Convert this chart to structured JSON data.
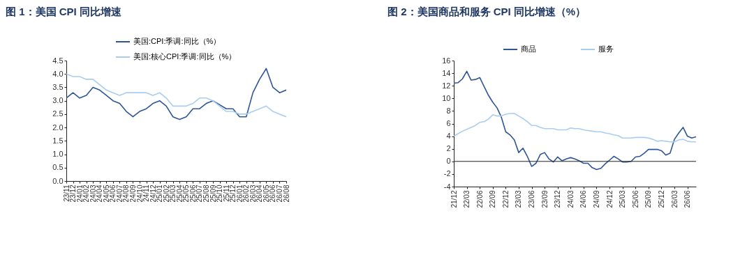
{
  "chart_data": [
    {
      "type": "line",
      "title": "图 1：美国 CPI 同比增速",
      "categories": [
        "23/11",
        "23/12",
        "24/01",
        "24/02",
        "24/03",
        "24/04",
        "24/05",
        "24/06",
        "24/07",
        "24/08",
        "24/09",
        "24/10",
        "24/11",
        "24/12",
        "25/01",
        "25/02",
        "25/03",
        "25/04",
        "25/05",
        "25/06",
        "25/07",
        "25/08",
        "25/09",
        "25/10",
        "25/11",
        "25/12",
        "26/01",
        "26/02",
        "26/03",
        "26/04",
        "26/05",
        "26/06",
        "26/07",
        "26/08"
      ],
      "series": [
        {
          "name": "美国:CPI:季调:同比（%）",
          "color": "#2e5597",
          "values": [
            3.1,
            3.3,
            3.1,
            3.2,
            3.5,
            3.4,
            3.2,
            3.0,
            2.9,
            2.6,
            2.4,
            2.6,
            2.7,
            2.9,
            3.0,
            2.8,
            2.4,
            2.3,
            2.4,
            2.7,
            2.7,
            2.9,
            3.0,
            2.85,
            2.7,
            2.7,
            2.4,
            2.4,
            3.3,
            3.8,
            4.2,
            3.5,
            3.3,
            3.4
          ]
        },
        {
          "name": "美国:核心CPI:季调:同比（%）",
          "color": "#a9cdf0",
          "values": [
            4.0,
            3.9,
            3.9,
            3.8,
            3.8,
            3.6,
            3.4,
            3.3,
            3.2,
            3.3,
            3.3,
            3.3,
            3.3,
            3.2,
            3.3,
            3.1,
            2.8,
            2.8,
            2.8,
            2.9,
            3.1,
            3.1,
            3.0,
            2.8,
            2.6,
            2.6,
            2.5,
            2.5,
            2.6,
            2.7,
            2.8,
            2.6,
            2.5,
            2.4
          ]
        }
      ],
      "ylim": [
        0,
        4.5
      ],
      "yticks": [
        {
          "value": 0,
          "label": "0.0"
        },
        {
          "value": 0.5,
          "label": "0.5"
        },
        {
          "value": 1,
          "label": "1.0"
        },
        {
          "value": 1.5,
          "label": "1.5"
        },
        {
          "value": 2,
          "label": "2.0"
        },
        {
          "value": 2.5,
          "label": "2.5"
        },
        {
          "value": 3,
          "label": "3.0"
        },
        {
          "value": 3.5,
          "label": "3.5"
        },
        {
          "value": 4,
          "label": "4.0"
        },
        {
          "value": 4.5,
          "label": "4.5"
        }
      ],
      "grid": false,
      "legend": "top",
      "marker": "none",
      "line_style": "solid"
    },
    {
      "type": "line",
      "title": "图 2：美国商品和服务 CPI 同比增速（%）",
      "categories": [
        "21/12",
        null,
        null,
        "22/03",
        null,
        null,
        "22/06",
        null,
        null,
        "22/09",
        null,
        null,
        "22/12",
        null,
        null,
        "23/03",
        null,
        null,
        "23/06",
        null,
        null,
        "23/09",
        null,
        null,
        "23/12",
        null,
        null,
        "24/03",
        null,
        null,
        "24/06",
        null,
        null,
        "24/09",
        null,
        null,
        "24/12",
        null,
        null,
        "25/03",
        null,
        null,
        "25/06",
        null,
        null,
        "25/09",
        null,
        null,
        "25/12",
        null,
        null,
        "26/03",
        null,
        null,
        "26/06",
        null,
        null
      ],
      "series": [
        {
          "name": "商品",
          "color": "#2e5597",
          "values": [
            12.4,
            12.5,
            13.1,
            14.3,
            12.9,
            13.0,
            13.3,
            11.9,
            10.5,
            9.4,
            8.5,
            7.0,
            4.7,
            4.2,
            3.4,
            1.4,
            2.1,
            0.8,
            -0.8,
            -0.3,
            1.1,
            1.4,
            0.4,
            -0.1,
            0.7,
            0.1,
            0.4,
            0.6,
            0.4,
            0.1,
            -0.3,
            -0.3,
            -1.0,
            -1.3,
            -1.1,
            -0.4,
            0.2,
            0.8,
            0.4,
            -0.1,
            -0.1,
            0.0,
            0.7,
            0.8,
            1.3,
            1.9,
            1.9,
            1.9,
            1.7,
            1.0,
            1.3,
            3.5,
            4.5,
            5.4,
            4.0,
            3.7,
            3.9
          ]
        },
        {
          "name": "服务",
          "color": "#a9cdf0",
          "values": [
            4.0,
            4.4,
            4.8,
            5.1,
            5.4,
            5.7,
            6.2,
            6.3,
            6.7,
            7.4,
            7.2,
            7.2,
            7.5,
            7.6,
            7.6,
            7.2,
            6.8,
            6.3,
            5.7,
            5.7,
            5.4,
            5.2,
            5.2,
            5.2,
            5.0,
            5.0,
            5.0,
            5.3,
            5.2,
            5.2,
            5.0,
            4.9,
            4.8,
            4.7,
            4.7,
            4.5,
            4.4,
            4.2,
            4.1,
            3.7,
            3.7,
            3.7,
            3.8,
            3.8,
            3.8,
            3.7,
            3.5,
            3.2,
            3.3,
            3.2,
            3.1,
            3.1,
            3.4,
            3.5,
            3.2,
            3.1,
            3.1
          ]
        }
      ],
      "ylim": [
        -4,
        16
      ],
      "yticks": [
        -4,
        -2,
        0,
        2,
        4,
        6,
        8,
        10,
        12,
        14,
        16
      ],
      "ref_lines": [
        {
          "axis": "y",
          "value": 0
        }
      ],
      "grid": false,
      "legend": "top",
      "marker": "none",
      "line_style": "solid"
    }
  ]
}
